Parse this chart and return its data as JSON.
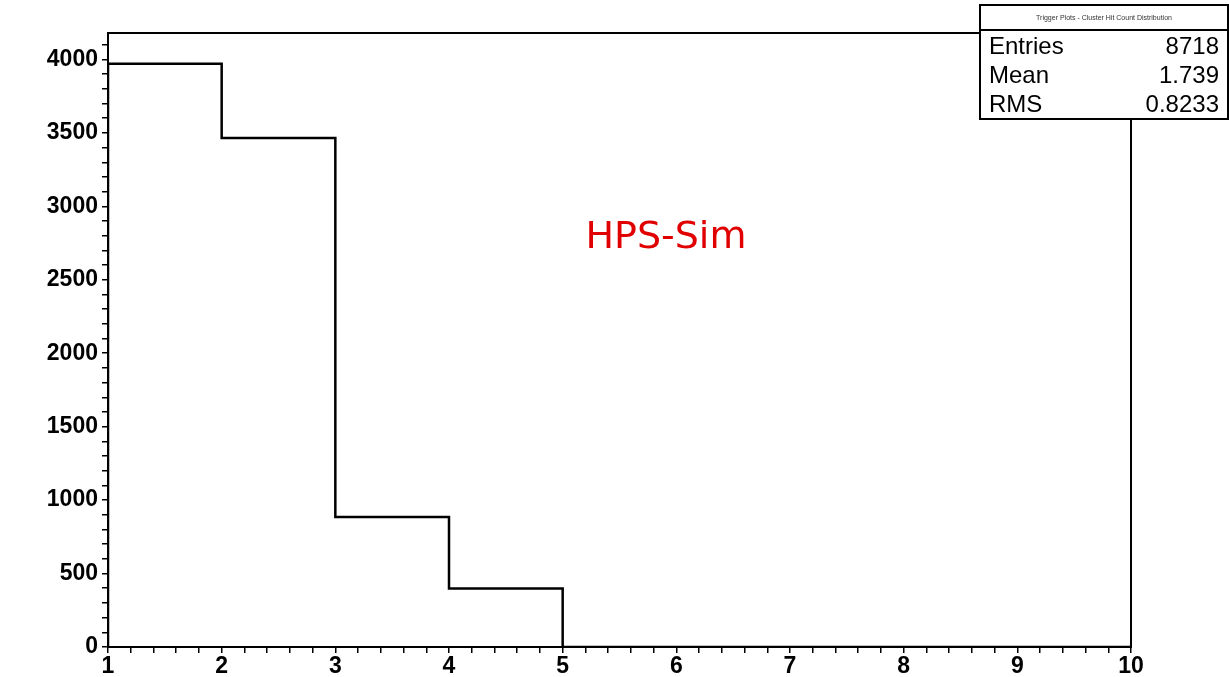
{
  "chart_data": {
    "type": "histogram",
    "bins": [
      1,
      2,
      3,
      4,
      5,
      6,
      7,
      8,
      9,
      10
    ],
    "values": [
      3970,
      3465,
      885,
      398,
      0,
      0,
      0,
      0,
      0
    ],
    "color": "#000000",
    "xlim": [
      1,
      10
    ],
    "xticks": [
      1,
      {
        "value": 1.2,
        "label": null
      },
      {
        "value": 1.4,
        "label": null
      },
      {
        "value": 1.6,
        "label": null
      },
      {
        "value": 1.8,
        "label": null
      },
      2,
      {
        "value": 2.2,
        "label": null
      },
      {
        "value": 2.4,
        "label": null
      },
      {
        "value": 2.6,
        "label": null
      },
      {
        "value": 2.8,
        "label": null
      },
      3,
      {
        "value": 3.2,
        "label": null
      },
      {
        "value": 3.4,
        "label": null
      },
      {
        "value": 3.6,
        "label": null
      },
      {
        "value": 3.8,
        "label": null
      },
      4,
      {
        "value": 4.2,
        "label": null
      },
      {
        "value": 4.4,
        "label": null
      },
      {
        "value": 4.6,
        "label": null
      },
      {
        "value": 4.8,
        "label": null
      },
      5,
      {
        "value": 5.2,
        "label": null
      },
      {
        "value": 5.4,
        "label": null
      },
      {
        "value": 5.6,
        "label": null
      },
      {
        "value": 5.8,
        "label": null
      },
      6,
      {
        "value": 6.2,
        "label": null
      },
      {
        "value": 6.4,
        "label": null
      },
      {
        "value": 6.6,
        "label": null
      },
      {
        "value": 6.8,
        "label": null
      },
      7,
      {
        "value": 7.2,
        "label": null
      },
      {
        "value": 7.4,
        "label": null
      },
      {
        "value": 7.6,
        "label": null
      },
      {
        "value": 7.8,
        "label": null
      },
      8,
      {
        "value": 8.2,
        "label": null
      },
      {
        "value": 8.4,
        "label": null
      },
      {
        "value": 8.6,
        "label": null
      },
      {
        "value": 8.8,
        "label": null
      },
      9,
      {
        "value": 9.2,
        "label": null
      },
      {
        "value": 9.4,
        "label": null
      },
      {
        "value": 9.6,
        "label": null
      },
      {
        "value": 9.8,
        "label": null
      },
      10
    ],
    "ylim": [
      0,
      4180
    ],
    "yticks": [
      0,
      {
        "value": 100,
        "label": null
      },
      {
        "value": 200,
        "label": null
      },
      {
        "value": 300,
        "label": null
      },
      {
        "value": 400,
        "label": null
      },
      500,
      {
        "value": 600,
        "label": null
      },
      {
        "value": 700,
        "label": null
      },
      {
        "value": 800,
        "label": null
      },
      {
        "value": 900,
        "label": null
      },
      1000,
      {
        "value": 1100,
        "label": null
      },
      {
        "value": 1200,
        "label": null
      },
      {
        "value": 1300,
        "label": null
      },
      {
        "value": 1400,
        "label": null
      },
      1500,
      {
        "value": 1600,
        "label": null
      },
      {
        "value": 1700,
        "label": null
      },
      {
        "value": 1800,
        "label": null
      },
      {
        "value": 1900,
        "label": null
      },
      2000,
      {
        "value": 2100,
        "label": null
      },
      {
        "value": 2200,
        "label": null
      },
      {
        "value": 2300,
        "label": null
      },
      {
        "value": 2400,
        "label": null
      },
      2500,
      {
        "value": 2600,
        "label": null
      },
      {
        "value": 2700,
        "label": null
      },
      {
        "value": 2800,
        "label": null
      },
      {
        "value": 2900,
        "label": null
      },
      3000,
      {
        "value": 3100,
        "label": null
      },
      {
        "value": 3200,
        "label": null
      },
      {
        "value": 3300,
        "label": null
      },
      {
        "value": 3400,
        "label": null
      },
      3500,
      {
        "value": 3600,
        "label": null
      },
      {
        "value": 3700,
        "label": null
      },
      {
        "value": 3800,
        "label": null
      },
      {
        "value": 3900,
        "label": null
      },
      4000,
      {
        "value": 4100,
        "label": null
      }
    ],
    "grid": false,
    "legend": false,
    "annotations": [
      "HPS-Sim",
      "Trigger Plots - Cluster Hit Count Distribution",
      "Entries",
      "8718",
      "Mean",
      "1.739",
      "RMS",
      "0.8233"
    ]
  }
}
